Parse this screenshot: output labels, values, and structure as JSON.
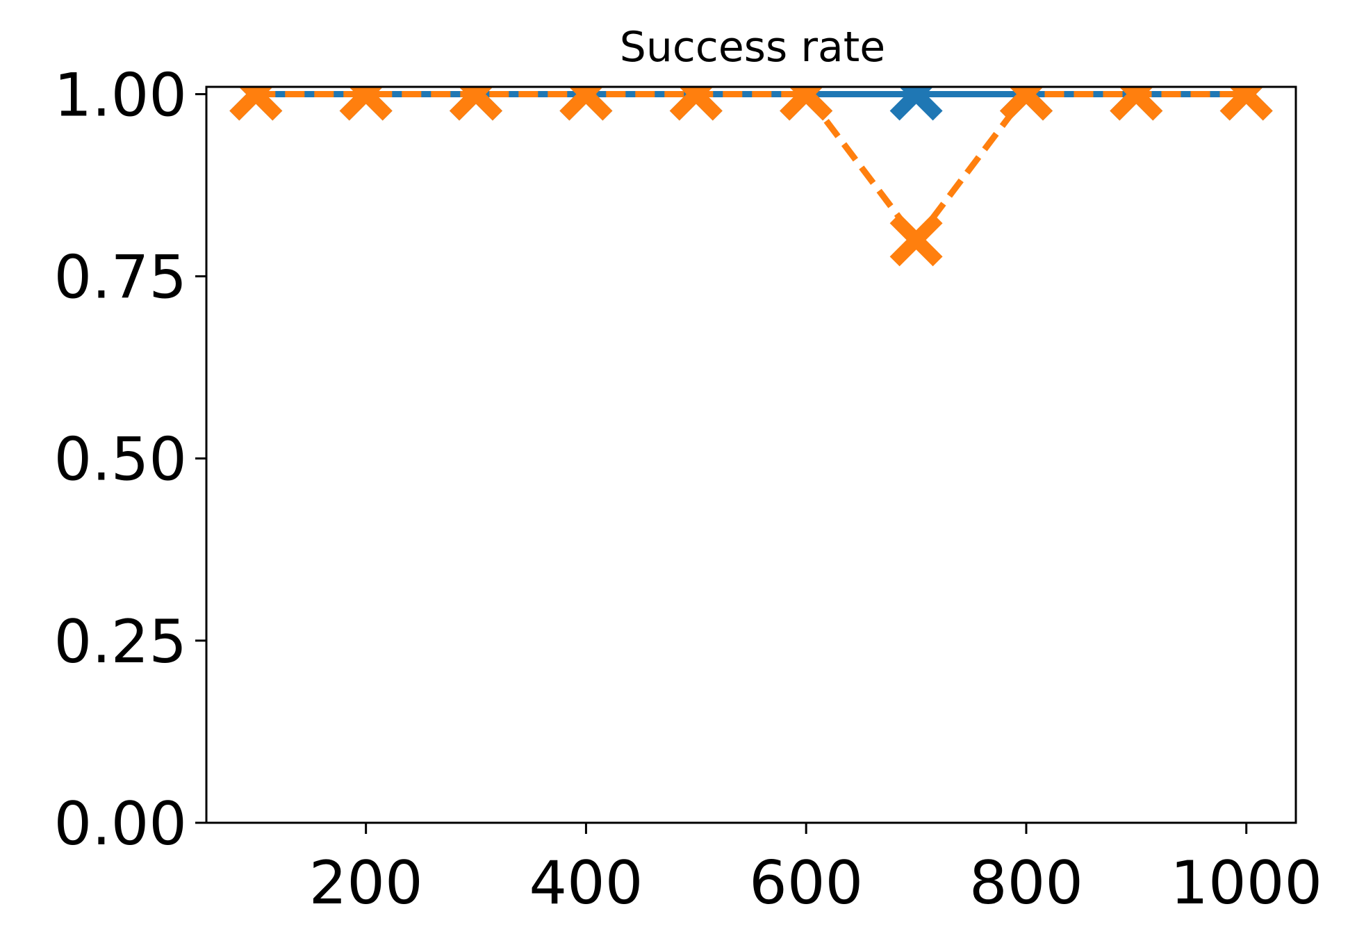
{
  "chart_data": {
    "type": "line",
    "title": "Success rate",
    "xlabel": "",
    "ylabel": "",
    "x": [
      100,
      200,
      300,
      400,
      500,
      600,
      700,
      800,
      900,
      1000
    ],
    "xlim": [
      55,
      1045
    ],
    "ylim": [
      0,
      1.01
    ],
    "xticks": [
      200,
      400,
      600,
      800,
      1000
    ],
    "yticks": [
      0,
      0.25,
      0.5,
      0.75,
      1.0
    ],
    "xtick_labels": [
      "200",
      "400",
      "600",
      "800",
      "1000"
    ],
    "ytick_labels": [
      "0.00",
      "0.25",
      "0.50",
      "0.75",
      "1.00"
    ],
    "grid": false,
    "legend": "none",
    "series": [
      {
        "values": [
          1,
          1,
          1,
          1,
          1,
          1,
          1,
          1,
          1,
          1
        ],
        "color": "#1f77b4",
        "line_style": "solid",
        "marker": "x-filled"
      },
      {
        "values": [
          1,
          1,
          1,
          1,
          1,
          1,
          0.8,
          1,
          1,
          1
        ],
        "color": "#ff7f0e",
        "line_style": "dashed",
        "marker": "x-filled"
      }
    ]
  }
}
